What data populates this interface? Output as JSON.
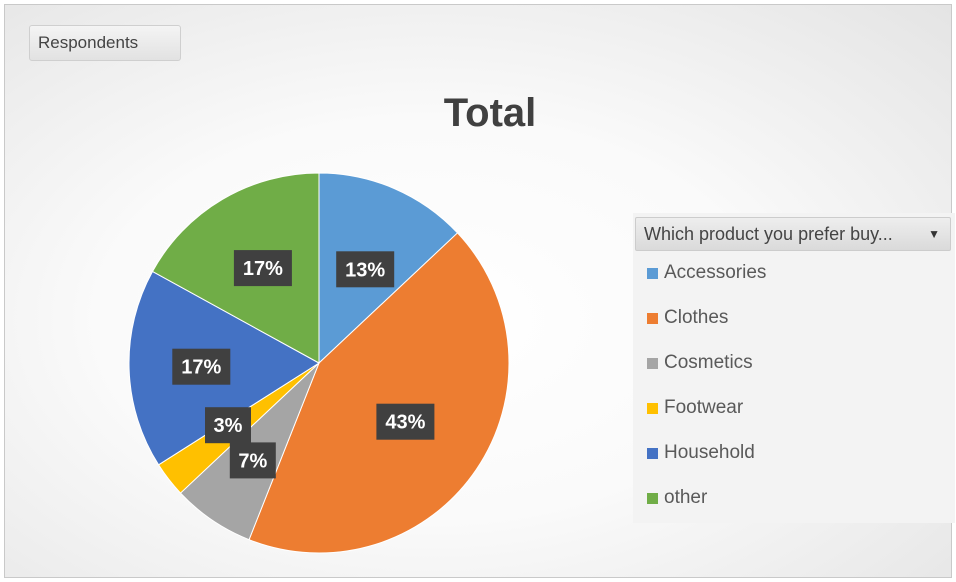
{
  "field_button": {
    "label": "Respondents"
  },
  "legend_filter": {
    "label": "Which product you prefer buy...",
    "icon": "dropdown-caret-icon"
  },
  "chart_data": {
    "type": "pie",
    "title": "Total",
    "legend_placement": "right",
    "slices": [
      {
        "label": "Accessories",
        "value": 13,
        "display": "13%",
        "color": "#5B9BD5"
      },
      {
        "label": "Clothes",
        "value": 43,
        "display": "43%",
        "color": "#ED7D31"
      },
      {
        "label": "Cosmetics",
        "value": 7,
        "display": "7%",
        "color": "#A5A5A5"
      },
      {
        "label": "Footwear",
        "value": 3,
        "display": "3%",
        "color": "#FFC000"
      },
      {
        "label": "Household",
        "value": 17,
        "display": "17%",
        "color": "#4472C4"
      },
      {
        "label": "other",
        "value": 17,
        "display": "17%",
        "color": "#70AD47"
      }
    ]
  }
}
